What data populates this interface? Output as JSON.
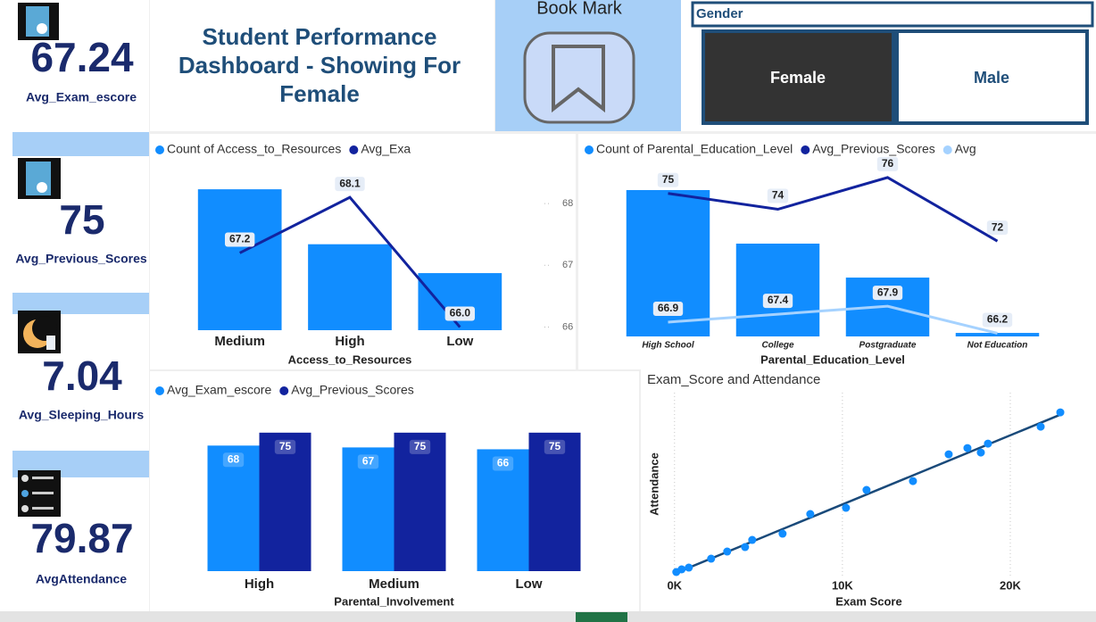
{
  "kpis": [
    {
      "value": 67.24,
      "label": "Avg_Exam_escore"
    },
    {
      "value": 75,
      "label": "Avg_Previous_Scores"
    },
    {
      "value": 7.04,
      "label": "Avg_Sleeping_Hours"
    },
    {
      "value": 79.87,
      "label": "AvgAttendance"
    }
  ],
  "header": {
    "title_lines": [
      "Student Performance",
      "Dashboard -  Showing For",
      "Female"
    ]
  },
  "bookmark": {
    "label": "Book Mark"
  },
  "slicer": {
    "title": "Gender",
    "options": [
      "Female",
      "Male"
    ],
    "selected_index": 0
  },
  "chart_data": [
    {
      "type": "combo",
      "categories": [
        "Medium",
        "High",
        "Low"
      ],
      "x_label": "Access_to_Resources",
      "ylim": [
        0,
        1140
      ],
      "y2lim": [
        65.95,
        68.55
      ],
      "y2ticks": [
        66,
        67,
        68
      ],
      "series": [
        {
          "name": "Count of Access_to_Resources",
          "kind": "bar",
          "color": "#118dff",
          "values": [
            1000,
            610,
            405
          ]
        },
        {
          "name": "Avg_Exa",
          "kind": "line",
          "axis": "y2",
          "color": "#12239e",
          "values": [
            67.2,
            68.1,
            66.0
          ],
          "value_labels": [
            "67.2",
            "68.1",
            "66.0"
          ]
        }
      ]
    },
    {
      "type": "combo",
      "categories": [
        "High School",
        "College",
        "Postgraduate",
        "Not Education"
      ],
      "x_label": "Parental_Education_Level",
      "ylim": [
        0,
        1140
      ],
      "y2lim": [
        66,
        76.5
      ],
      "series": [
        {
          "name": "Count of Parental_Education_Level",
          "kind": "bar",
          "color": "#118dff",
          "values": [
            1000,
            634,
            402,
            24
          ]
        },
        {
          "name": "Avg_Previous_Scores",
          "kind": "line",
          "axis": "y2",
          "color": "#12239e",
          "values": [
            75,
            74,
            76,
            72
          ]
        },
        {
          "name": "Avg",
          "kind": "line",
          "axis": "y2",
          "color": "#a5d2ff",
          "values": [
            66.9,
            67.4,
            67.9,
            66.2
          ]
        }
      ]
    },
    {
      "type": "grouped_bar",
      "categories": [
        "High",
        "Medium",
        "Low"
      ],
      "x_label": "Parental_Involvement",
      "ylim": [
        0,
        87
      ],
      "series": [
        {
          "name": "Avg_Exam_escore",
          "color": "#118dff",
          "values": [
            68,
            67,
            66
          ]
        },
        {
          "name": "Avg_Previous_Scores",
          "color": "#12239e",
          "values": [
            75,
            75,
            75
          ]
        }
      ]
    },
    {
      "type": "scatter",
      "title": "Exam_Score and Attendance",
      "x_label": "Exam Score",
      "y_label": "Attendance",
      "xlim": [
        -200,
        23350
      ],
      "ylim": [
        0,
        32000
      ],
      "xticks": [
        {
          "value": 0,
          "label": "0K"
        },
        {
          "value": 10000,
          "label": "10K"
        },
        {
          "value": 20000,
          "label": "20K"
        }
      ],
      "color": "#118dff",
      "x": [
        106,
        426,
        851,
        2181,
        3138,
        4202,
        4628,
        6436,
        8085,
        10213,
        11436,
        14202,
        16330,
        17447,
        18245,
        18670,
        21809,
        22979
      ],
      "values": [
        624,
        1092,
        1404,
        2964,
        4212,
        4992,
        6240,
        7332,
        10764,
        11856,
        14976,
        16536,
        21216,
        22308,
        21528,
        23088,
        26052,
        28548
      ]
    }
  ]
}
